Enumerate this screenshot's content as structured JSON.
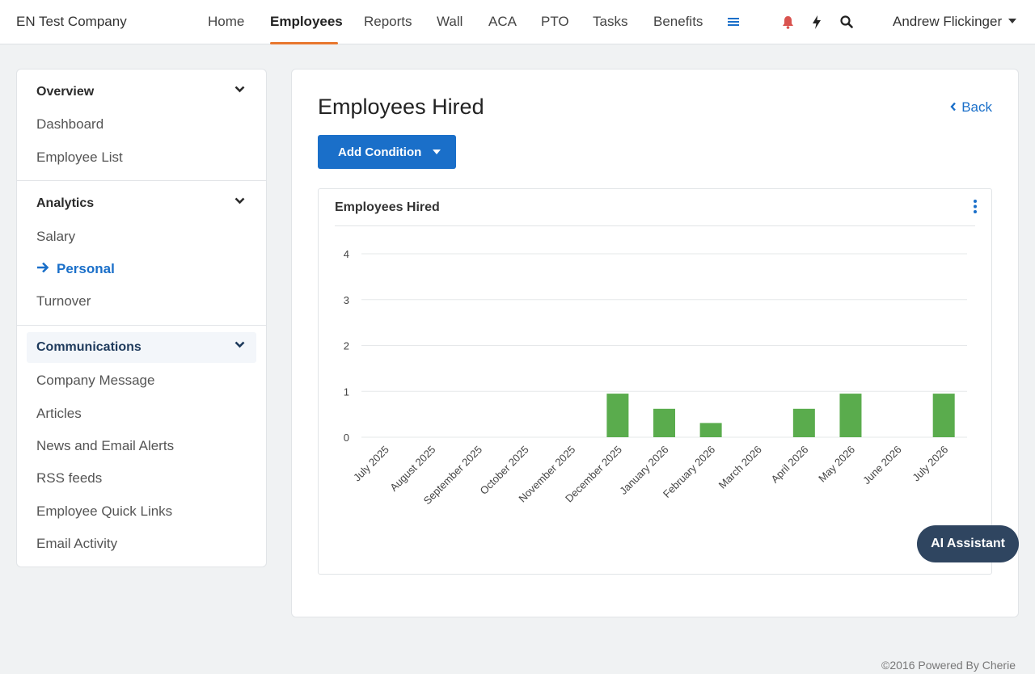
{
  "topnav": {
    "brand": "EN Test Company",
    "items": [
      "Home",
      "Employees",
      "Reports",
      "Wall",
      "ACA",
      "PTO",
      "Tasks",
      "Benefits"
    ],
    "active": "Employees",
    "user": "Andrew Flickinger",
    "icons": [
      "menu-icon",
      "bell-icon",
      "lightning-icon",
      "search-icon"
    ]
  },
  "sidebar": {
    "sections": [
      {
        "title": "Overview",
        "links": [
          "Dashboard",
          "Employee List"
        ]
      },
      {
        "title": "Analytics",
        "links": [
          "Salary",
          "Personal",
          "Turnover"
        ],
        "active": "Personal"
      },
      {
        "title": "Communications",
        "links": [
          "Company Message",
          "Articles",
          "News and Email Alerts",
          "RSS feeds",
          "Employee Quick Links",
          "Email Activity"
        ]
      }
    ]
  },
  "main": {
    "title": "Employees Hired",
    "back_label": "Back",
    "add_condition_label": "Add Condition",
    "chart_card_title": "Employees Hired"
  },
  "chart_data": {
    "type": "bar",
    "title": "Employees Hired",
    "categories": [
      "July 2025",
      "August 2025",
      "September 2025",
      "October 2025",
      "November 2025",
      "December 2025",
      "January 2026",
      "February 2026",
      "March 2026",
      "April 2026",
      "May 2026",
      "June 2026",
      "July 2026"
    ],
    "values": [
      0,
      0,
      0,
      0,
      0,
      0.95,
      0.62,
      0.31,
      0,
      0.62,
      0.95,
      0,
      0.95
    ],
    "ylim": [
      0,
      4
    ],
    "yticks": [
      0,
      1,
      2,
      3,
      4
    ],
    "xlabel": "",
    "ylabel": "",
    "grid": true,
    "bar_color": "#5aac4d"
  },
  "ai_button_label": "AI Assistant",
  "footer": "©2016 Powered By Cherie",
  "colors": {
    "accent": "#1a6fc9",
    "nav_active_underline": "#e8772e",
    "bell": "#d9534f"
  }
}
